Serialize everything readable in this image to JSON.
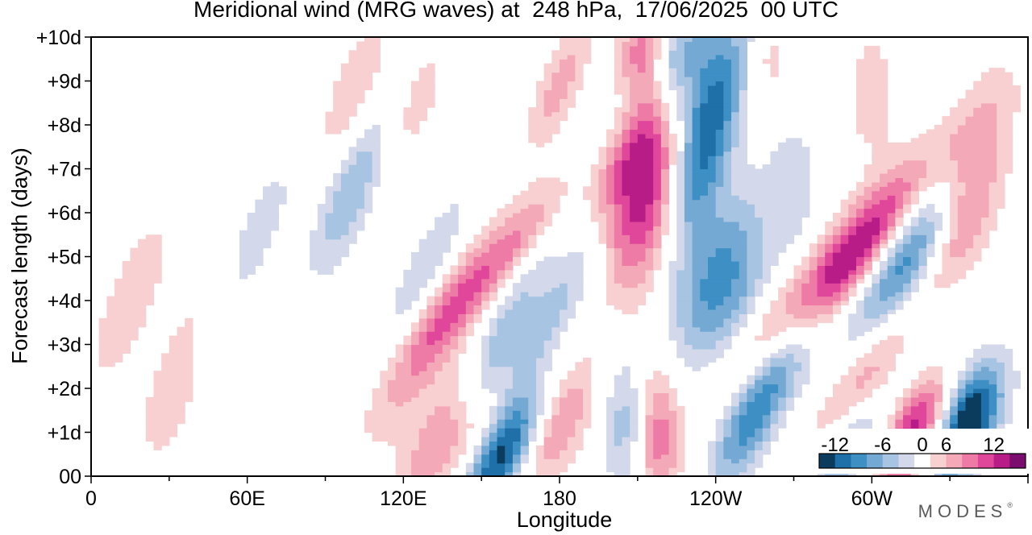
{
  "chart_data": {
    "type": "heatmap",
    "title": "Meridional wind (MRG waves) at  248 hPa,  17/06/2025  00 UTC",
    "xlabel": "Longitude",
    "ylabel": "Forecast length (days)",
    "x_ticks": [
      "0",
      "60E",
      "120E",
      "180",
      "120W",
      "60W"
    ],
    "x_tick_values": [
      0,
      60,
      120,
      180,
      240,
      300
    ],
    "x_range": [
      0,
      360
    ],
    "y_ticks": [
      "00",
      "+1d",
      "+2d",
      "+3d",
      "+4d",
      "+5d",
      "+6d",
      "+7d",
      "+8d",
      "+9d",
      "+10d"
    ],
    "y_range": [
      0,
      10
    ],
    "colorbar": {
      "tick_labels": [
        "-12",
        "-6",
        "0",
        "6",
        "12"
      ],
      "tick_values": [
        -12,
        -6,
        0,
        6,
        12
      ],
      "levels": [
        -14,
        -12,
        -10,
        -8,
        -6,
        -4,
        -2,
        2,
        4,
        6,
        8,
        10,
        12,
        14
      ],
      "colors": [
        "#0b3c5d",
        "#1f6fa8",
        "#3d8fc4",
        "#74a9d4",
        "#a7c4e2",
        "#d3d8ea",
        "#ffffff",
        "#f8d0d2",
        "#f4a9b9",
        "#ee7aa6",
        "#e0479a",
        "#b81c86",
        "#7a0d6e"
      ],
      "placement": "bottom-right inside plot"
    },
    "features": [
      {
        "name": "positive band near 140E",
        "lon_center": 140,
        "day_center": 1.0,
        "peak": 11
      },
      {
        "name": "negative band near 160E",
        "lon_center": 155,
        "day_center": 0.5,
        "peak": -13
      },
      {
        "name": "positive band near 175E",
        "lon_center": 168,
        "day_center": 5.5,
        "peak": 10
      },
      {
        "name": "positive maximum near 150W",
        "lon_center": 210,
        "day_center": 7.0,
        "peak": 13
      },
      {
        "name": "negative maximum near 125W",
        "lon_center": 235,
        "day_center": 7.5,
        "peak": -13
      },
      {
        "name": "positive maximum near 65W",
        "lon_center": 292,
        "day_center": 5.0,
        "peak": 14
      },
      {
        "name": "negative band near 45W",
        "lon_center": 315,
        "day_center": 5.2,
        "peak": -12
      },
      {
        "name": "positive band near 25W",
        "lon_center": 335,
        "day_center": 6.0,
        "peak": 9
      },
      {
        "name": "positive band near 45W low",
        "lon_center": 315,
        "day_center": 1.0,
        "peak": 12
      }
    ],
    "grid": false
  },
  "branding": {
    "text": "MODES",
    "mark": "®"
  }
}
